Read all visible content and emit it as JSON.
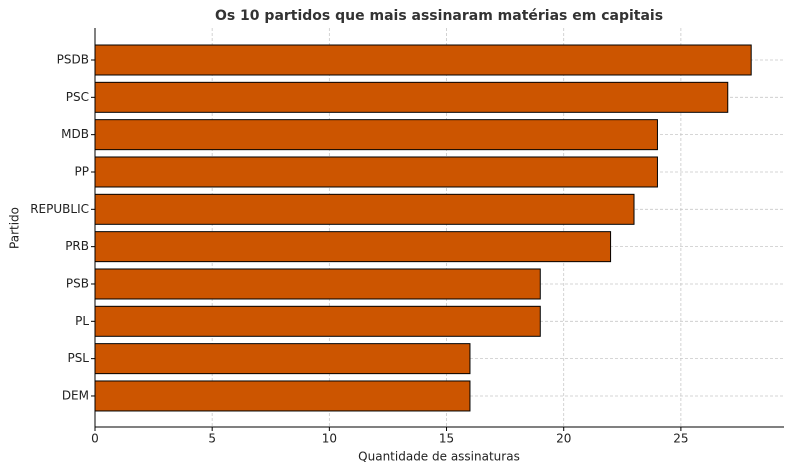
{
  "chart_data": {
    "type": "barh",
    "title": "Os 10 partidos que mais assinaram matérias em capitais",
    "x_label": "Quantidade de assinaturas",
    "y_label": "Partido",
    "categories": [
      "PSDB",
      "PSC",
      "MDB",
      "PP",
      "REPUBLIC",
      "PRB",
      "PSB",
      "PL",
      "PSL",
      "DEM"
    ],
    "values": [
      28,
      27,
      24,
      24,
      23,
      22,
      19,
      19,
      16,
      16
    ],
    "color": "#cc5500",
    "edgecolor": "#000000",
    "xlim": [
      0,
      29.4
    ],
    "xticks": [
      0,
      5,
      10,
      15,
      20,
      25
    ],
    "grid": true
  }
}
